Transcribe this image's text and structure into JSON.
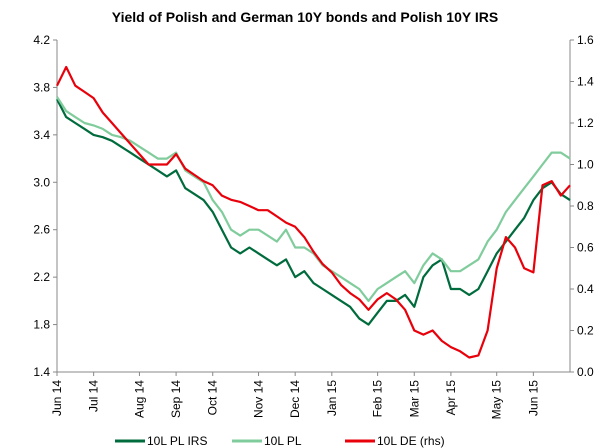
{
  "chart_data": {
    "type": "line",
    "title": "Yield of Polish and German 10Y bonds and Polish 10Y IRS",
    "categories": [
      "Jun 14",
      null,
      null,
      null,
      "Jul 14",
      null,
      null,
      null,
      null,
      "Aug 14",
      null,
      null,
      null,
      "Sep 14",
      null,
      null,
      null,
      "Oct 14",
      null,
      null,
      null,
      null,
      "Nov 14",
      null,
      null,
      null,
      "Dec 14",
      null,
      null,
      null,
      "Jan 15",
      null,
      null,
      null,
      null,
      "Feb 15",
      null,
      null,
      null,
      "Mar 15",
      null,
      null,
      null,
      "Apr 15",
      null,
      null,
      null,
      null,
      "May 15",
      null,
      null,
      null,
      "Jun 15",
      null,
      null,
      null,
      null
    ],
    "series": [
      {
        "name": "10L PL IRS",
        "color": "#006b3c",
        "values": [
          3.7,
          3.55,
          3.5,
          3.45,
          3.4,
          3.38,
          3.35,
          3.3,
          3.25,
          3.2,
          3.15,
          3.1,
          3.05,
          3.1,
          2.95,
          2.9,
          2.85,
          2.75,
          2.6,
          2.45,
          2.4,
          2.45,
          2.4,
          2.35,
          2.3,
          2.35,
          2.2,
          2.25,
          2.15,
          2.1,
          2.05,
          2.0,
          1.95,
          1.85,
          1.8,
          1.9,
          2.0,
          2.0,
          2.05,
          1.95,
          2.2,
          2.3,
          2.35,
          2.1,
          2.1,
          2.05,
          2.1,
          2.25,
          2.4,
          2.5,
          2.6,
          2.7,
          2.85,
          2.95,
          3.0,
          2.9,
          2.85
        ]
      },
      {
        "name": "10L PL",
        "color": "#80cc9c",
        "values": [
          3.72,
          3.6,
          3.55,
          3.5,
          3.48,
          3.45,
          3.4,
          3.38,
          3.35,
          3.3,
          3.25,
          3.2,
          3.2,
          3.25,
          3.1,
          3.05,
          3.0,
          2.85,
          2.75,
          2.6,
          2.55,
          2.6,
          2.6,
          2.55,
          2.5,
          2.6,
          2.45,
          2.45,
          2.4,
          2.3,
          2.25,
          2.2,
          2.15,
          2.1,
          2.0,
          2.1,
          2.15,
          2.2,
          2.25,
          2.15,
          2.3,
          2.4,
          2.35,
          2.25,
          2.25,
          2.3,
          2.35,
          2.5,
          2.6,
          2.75,
          2.85,
          2.95,
          3.05,
          3.15,
          3.25,
          3.25,
          3.2
        ]
      },
      {
        "name": "10L DE (rhs)",
        "color": "#e8000b",
        "axis": "y2",
        "values": [
          1.38,
          1.47,
          1.38,
          1.35,
          1.32,
          1.25,
          1.2,
          1.15,
          1.1,
          1.05,
          1.0,
          1.0,
          1.0,
          1.05,
          0.98,
          0.95,
          0.92,
          0.9,
          0.85,
          0.83,
          0.82,
          0.8,
          0.78,
          0.78,
          0.75,
          0.72,
          0.7,
          0.65,
          0.58,
          0.52,
          0.48,
          0.42,
          0.38,
          0.35,
          0.3,
          0.35,
          0.38,
          0.35,
          0.3,
          0.2,
          0.18,
          0.2,
          0.15,
          0.12,
          0.1,
          0.07,
          0.08,
          0.2,
          0.5,
          0.65,
          0.6,
          0.5,
          0.48,
          0.9,
          0.92,
          0.85,
          0.9
        ]
      }
    ],
    "ylim": [
      1.4,
      4.2
    ],
    "yticks": [
      1.4,
      1.8,
      2.2,
      2.6,
      {
        "value": 3,
        "label": "3.0"
      },
      3.4,
      3.8,
      4.2
    ],
    "y2lim": [
      0,
      1.6
    ],
    "y2ticks": [
      {
        "value": 0,
        "label": "0.0"
      },
      0.2,
      0.4,
      0.6,
      0.8,
      {
        "value": 1,
        "label": "1.0"
      },
      1.2,
      1.4,
      1.6
    ],
    "legend": "bottom"
  }
}
